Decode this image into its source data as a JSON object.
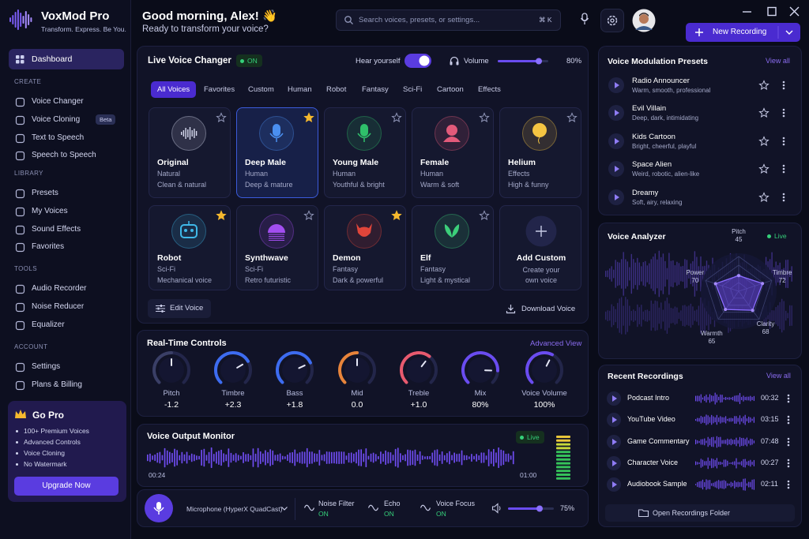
{
  "app": {
    "name": "VoxMod Pro",
    "tagline": "Transform. Express. Be You."
  },
  "sidebar": {
    "active": "Dashboard",
    "sections": [
      {
        "title": "CREATE",
        "items": [
          {
            "label": "Voice Changer"
          },
          {
            "label": "Voice Cloning",
            "badge": "Beta"
          },
          {
            "label": "Text to Speech"
          },
          {
            "label": "Speech to Speech"
          }
        ]
      },
      {
        "title": "LIBRARY",
        "items": [
          {
            "label": "Presets"
          },
          {
            "label": "My Voices"
          },
          {
            "label": "Sound Effects"
          },
          {
            "label": "Favorites"
          }
        ]
      },
      {
        "title": "TOOLS",
        "items": [
          {
            "label": "Audio Recorder"
          },
          {
            "label": "Noise Reducer"
          },
          {
            "label": "Equalizer"
          }
        ]
      },
      {
        "title": "ACCOUNT",
        "items": [
          {
            "label": "Settings"
          },
          {
            "label": "Plans & Billing"
          }
        ]
      }
    ]
  },
  "go_pro": {
    "title": "Go Pro",
    "features": [
      "100+ Premium Voices",
      "Advanced Controls",
      "Voice Cloning",
      "No Watermark"
    ],
    "button": "Upgrade Now"
  },
  "header": {
    "greeting": "Good morning, Alex! 👋",
    "subtitle": "Ready to transform your voice?",
    "search": "Search voices, presets, or settings...",
    "shortcut": "⌘ K",
    "new_recording": "New Recording"
  },
  "live_changer": {
    "title": "Live Voice Changer",
    "status": "ON",
    "hear_yourself": "Hear yourself",
    "volume_label": "Volume",
    "volume": "80%",
    "tabs": [
      "All Voices",
      "Favorites",
      "Custom",
      "Human",
      "Robot",
      "Fantasy",
      "Sci-Fi",
      "Cartoon",
      "Effects"
    ],
    "voices": [
      {
        "name": "Original",
        "category": "Natural",
        "description": "Clean & natural",
        "color": "#d8dbf0"
      },
      {
        "name": "Deep Male",
        "category": "Human",
        "description": "Deep & mature",
        "color": "#4a8ff0",
        "starred": true,
        "selected": true
      },
      {
        "name": "Young Male",
        "category": "Human",
        "description": "Youthful & bright",
        "color": "#2fc06a"
      },
      {
        "name": "Female",
        "category": "Human",
        "description": "Warm & soft",
        "color": "#e35a7a"
      },
      {
        "name": "Helium",
        "category": "Effects",
        "description": "High & funny",
        "color": "#f5c542"
      },
      {
        "name": "Robot",
        "category": "Sci-Fi",
        "description": "Mechanical voice",
        "color": "#3fb8e8",
        "starred": true
      },
      {
        "name": "Synthwave",
        "category": "Sci-Fi",
        "description": "Retro futuristic",
        "color": "#a24ef0"
      },
      {
        "name": "Demon",
        "category": "Fantasy",
        "description": "Dark & powerful",
        "color": "#e0453a",
        "starred": true
      },
      {
        "name": "Elf",
        "category": "Fantasy",
        "description": "Light & mystical",
        "color": "#3ccf7a"
      }
    ],
    "add_custom": {
      "title": "Add Custom",
      "description": [
        "Create your",
        "own voice"
      ]
    },
    "edit": "Edit Voice",
    "download": "Download Voice"
  },
  "controls": {
    "title": "Real-Time Controls",
    "link": "Advanced View",
    "knobs": [
      {
        "label": "Pitch",
        "value": "-1.2",
        "color": "#3a3f66"
      },
      {
        "label": "Timbre",
        "value": "+2.3",
        "color": "#3d6cf0"
      },
      {
        "label": "Bass",
        "value": "+1.8",
        "color": "#3d6cf0"
      },
      {
        "label": "Mid",
        "value": "0.0",
        "color": "#e8843a"
      },
      {
        "label": "Treble",
        "value": "+1.0",
        "color": "#e85a6e"
      },
      {
        "label": "Mix",
        "value": "80%",
        "color": "#6a4cf0"
      },
      {
        "label": "Voice Volume",
        "value": "100%",
        "color": "#6a4cf0"
      }
    ]
  },
  "monitor": {
    "title": "Voice Output Monitor",
    "status": "Live",
    "elapsed": "00:24",
    "total": "01:00"
  },
  "input_bar": {
    "microphone": "Microphone (HyperX QuadCast)",
    "toggles": [
      {
        "label": "Noise Filter",
        "state": "ON"
      },
      {
        "label": "Echo",
        "state": "ON"
      },
      {
        "label": "Voice Focus",
        "state": "ON"
      }
    ],
    "volume": "75%"
  },
  "presets": {
    "title": "Voice Modulation Presets",
    "link": "View all",
    "items": [
      {
        "name": "Radio Announcer",
        "description": "Warm, smooth, professional"
      },
      {
        "name": "Evil Villain",
        "description": "Deep, dark, intimidating"
      },
      {
        "name": "Kids Cartoon",
        "description": "Bright, cheerful, playful"
      },
      {
        "name": "Space Alien",
        "description": "Weird, robotic, alien-like"
      },
      {
        "name": "Dreamy",
        "description": "Soft, airy, relaxing"
      }
    ]
  },
  "analyzer": {
    "title": "Voice Analyzer",
    "status": "Live",
    "axes": [
      {
        "label": "Pitch",
        "value": 45
      },
      {
        "label": "Timbre",
        "value": 72
      },
      {
        "label": "Clarity",
        "value": 68
      },
      {
        "label": "Warmth",
        "value": 65
      },
      {
        "label": "Power",
        "value": 70
      }
    ]
  },
  "recordings": {
    "title": "Recent Recordings",
    "link": "View all",
    "items": [
      {
        "name": "Podcast Intro",
        "duration": "00:32"
      },
      {
        "name": "YouTube Video",
        "duration": "03:15"
      },
      {
        "name": "Game Commentary",
        "duration": "07:48"
      },
      {
        "name": "Character Voice",
        "duration": "00:27"
      },
      {
        "name": "Audiobook Sample",
        "duration": "02:11"
      }
    ],
    "folder": "Open Recordings Folder"
  }
}
